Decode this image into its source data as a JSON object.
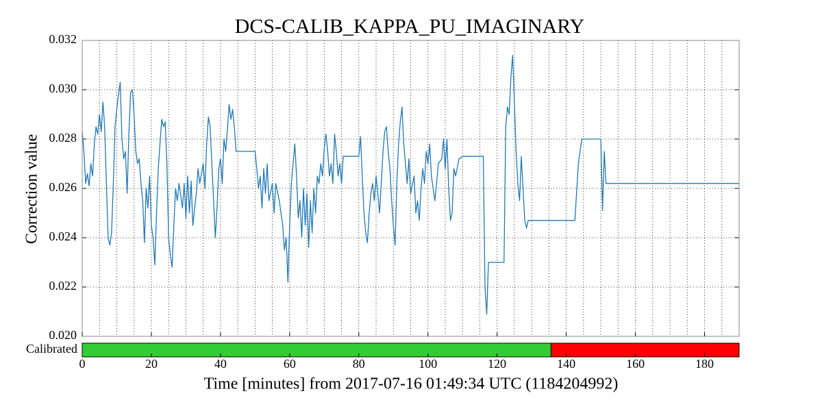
{
  "chart_data": {
    "type": "line",
    "title": "DCS-CALIB_KAPPA_PU_IMAGINARY",
    "y_label": "Correction value",
    "x_label": "Time [minutes] from 2017-07-16 01:49:34 UTC (1184204992)",
    "x": [
      0,
      0.5,
      1,
      1.5,
      2,
      2.5,
      3,
      3.5,
      4,
      4.5,
      5,
      5.5,
      6,
      6.5,
      7,
      7.5,
      8,
      8.5,
      9,
      9.5,
      10,
      10.5,
      11,
      11.5,
      12,
      12.5,
      13,
      13.5,
      14,
      14.5,
      15,
      15.5,
      16,
      16.5,
      17,
      17.5,
      18,
      18.5,
      19,
      19.5,
      20,
      20.5,
      21,
      21.5,
      22,
      22.5,
      23,
      23.5,
      24,
      24.5,
      25,
      25.5,
      26,
      26.5,
      27,
      27.5,
      28,
      29,
      29.5,
      30,
      30.5,
      31,
      31.5,
      32,
      33,
      33.5,
      34,
      35,
      35.5,
      36,
      36.5,
      37,
      37.5,
      38,
      38.5,
      39,
      39.5,
      40,
      40.5,
      41,
      41.5,
      42,
      42.5,
      43,
      43.5,
      44,
      44.5,
      50,
      50.5,
      51,
      51.5,
      52,
      52.5,
      53,
      53.5,
      54,
      55,
      55.5,
      56,
      57,
      58,
      58.5,
      59,
      59.5,
      60,
      60.5,
      61,
      61.5,
      62,
      62.5,
      63,
      63.5,
      64,
      64.5,
      65,
      65.5,
      66,
      66.5,
      67,
      67.5,
      68,
      68.5,
      69,
      69.5,
      70,
      70.5,
      71,
      71.5,
      72,
      72.5,
      73,
      73.5,
      74,
      74.5,
      75,
      75.5,
      80,
      80.5,
      81,
      81.5,
      82,
      82.5,
      83,
      83.5,
      84,
      84.5,
      85,
      85.5,
      86,
      86.5,
      87,
      87.5,
      88,
      88.5,
      89,
      89.5,
      90,
      90.5,
      91,
      91.5,
      92,
      92.5,
      93,
      93.5,
      94,
      94.5,
      95,
      96,
      96.5,
      97,
      97.5,
      98,
      98.5,
      99,
      99.5,
      100,
      100.5,
      101,
      102,
      102.5,
      103,
      104,
      104.5,
      105,
      105.5,
      106,
      106.5,
      107,
      107.5,
      108,
      109,
      110,
      116,
      116.5,
      117,
      117.5,
      122,
      122.5,
      123,
      123.5,
      124,
      124.5,
      125,
      125.5,
      126,
      126.5,
      127,
      127.5,
      128,
      128.5,
      129,
      142.5,
      143.5,
      144.5,
      150,
      150.5,
      151,
      151.5,
      190
    ],
    "series": [
      {
        "color": "#1f77b4",
        "values": [
          0.0283,
          0.0275,
          0.0262,
          0.0266,
          0.0261,
          0.027,
          0.0265,
          0.0278,
          0.0285,
          0.0282,
          0.029,
          0.0283,
          0.0295,
          0.0285,
          0.0262,
          0.024,
          0.0237,
          0.0242,
          0.0262,
          0.0285,
          0.0292,
          0.0298,
          0.0303,
          0.028,
          0.0272,
          0.0275,
          0.0258,
          0.0282,
          0.0299,
          0.03,
          0.029,
          0.0275,
          0.027,
          0.0272,
          0.0262,
          0.0255,
          0.0238,
          0.026,
          0.0252,
          0.0265,
          0.0245,
          0.024,
          0.0229,
          0.025,
          0.0268,
          0.0278,
          0.0288,
          0.0285,
          0.0287,
          0.027,
          0.024,
          0.0233,
          0.0228,
          0.0245,
          0.026,
          0.0255,
          0.0262,
          0.0252,
          0.0262,
          0.0248,
          0.0265,
          0.025,
          0.0263,
          0.0245,
          0.0258,
          0.0268,
          0.0262,
          0.027,
          0.026,
          0.0278,
          0.0289,
          0.0285,
          0.027,
          0.0255,
          0.024,
          0.0252,
          0.0268,
          0.0272,
          0.0262,
          0.028,
          0.0275,
          0.0284,
          0.0294,
          0.0288,
          0.0292,
          0.0285,
          0.0275,
          0.0275,
          0.0268,
          0.026,
          0.0265,
          0.0252,
          0.0268,
          0.0258,
          0.027,
          0.0255,
          0.0262,
          0.025,
          0.0262,
          0.0255,
          0.0245,
          0.0235,
          0.024,
          0.0222,
          0.0245,
          0.0262,
          0.027,
          0.0278,
          0.0265,
          0.0248,
          0.0255,
          0.024,
          0.026,
          0.0245,
          0.0258,
          0.0236,
          0.0255,
          0.0242,
          0.026,
          0.025,
          0.0265,
          0.0262,
          0.027,
          0.0265,
          0.0276,
          0.0282,
          0.0275,
          0.0265,
          0.027,
          0.0262,
          0.0282,
          0.0275,
          0.0265,
          0.027,
          0.0262,
          0.0273,
          0.0273,
          0.0281,
          0.0265,
          0.025,
          0.0242,
          0.0238,
          0.025,
          0.0258,
          0.0262,
          0.0255,
          0.0265,
          0.0258,
          0.025,
          0.0262,
          0.0275,
          0.0283,
          0.0285,
          0.0275,
          0.0268,
          0.0255,
          0.0245,
          0.0237,
          0.0262,
          0.0278,
          0.0287,
          0.0293,
          0.0278,
          0.027,
          0.0262,
          0.0272,
          0.0258,
          0.0265,
          0.025,
          0.0255,
          0.0247,
          0.026,
          0.0268,
          0.0262,
          0.0275,
          0.027,
          0.0278,
          0.0265,
          0.0255,
          0.0262,
          0.027,
          0.0272,
          0.028,
          0.0268,
          0.028,
          0.026,
          0.0247,
          0.025,
          0.0268,
          0.0265,
          0.0272,
          0.0273,
          0.0273,
          0.022,
          0.0209,
          0.023,
          0.023,
          0.0285,
          0.0293,
          0.029,
          0.0305,
          0.0314,
          0.0295,
          0.0275,
          0.0262,
          0.0255,
          0.0273,
          0.026,
          0.0247,
          0.0244,
          0.0247,
          0.0247,
          0.027,
          0.028,
          0.028,
          0.0251,
          0.0275,
          0.0262,
          0.0262
        ]
      }
    ],
    "xlim": [
      0,
      190
    ],
    "ylim": [
      0.02,
      0.032
    ],
    "xticks": [
      0,
      20,
      40,
      60,
      80,
      100,
      120,
      140,
      160,
      180
    ],
    "xminorticks": [
      5,
      10,
      15,
      25,
      30,
      35,
      45,
      50,
      55,
      65,
      70,
      75,
      85,
      90,
      95,
      105,
      110,
      115,
      125,
      130,
      135,
      145,
      150,
      155,
      165,
      170,
      175,
      185
    ],
    "yticks": [
      {
        "value": 0.02,
        "label": "0.020"
      },
      0.022,
      0.024,
      0.026,
      0.028,
      {
        "value": 0.03,
        "label": "0.030"
      },
      0.032
    ],
    "grid": true,
    "segment_label": "Calibrated",
    "segments": [
      {
        "start": 0,
        "end": 135.6,
        "color": "#33cc33"
      },
      {
        "start": 135.6,
        "end": 190,
        "color": "#ff0000"
      }
    ]
  }
}
